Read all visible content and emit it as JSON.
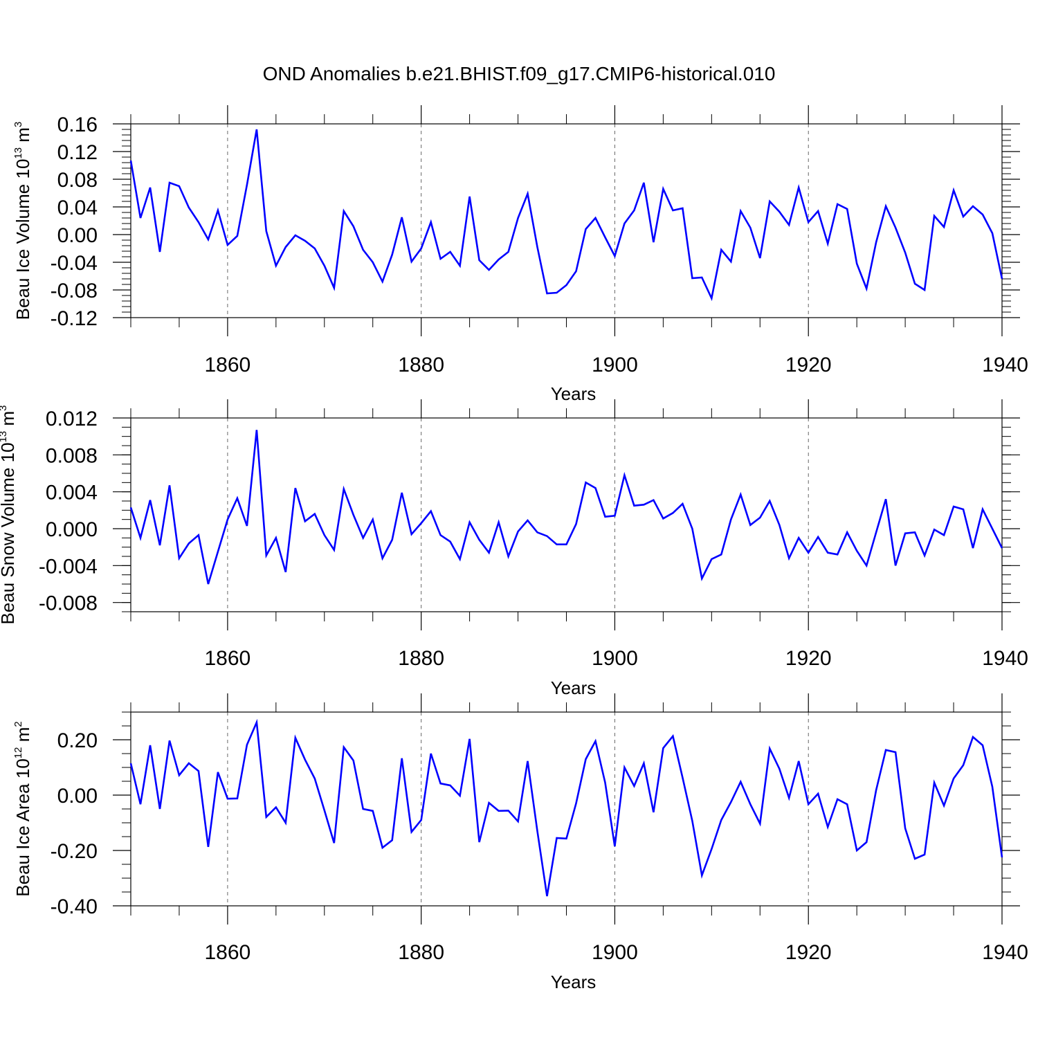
{
  "title": "OND Anomalies b.e21.BHIST.f09_g17.CMIP6-historical.010",
  "colors": {
    "series": "#0000ff",
    "axis": "#000000",
    "grid": "#666666"
  },
  "chart_data": [
    {
      "type": "line",
      "name": "ice-volume",
      "ylabel": {
        "main": "Beau Ice Volume 10",
        "sup": "13",
        "tail": " m",
        "sup2": "3"
      },
      "xlabel": "Years",
      "xlim": [
        1850,
        1940
      ],
      "ylim": [
        -0.12,
        0.16
      ],
      "yticks": [
        -0.12,
        -0.08,
        -0.04,
        0.0,
        0.04,
        0.08,
        0.12,
        0.16
      ],
      "ytick_labels": [
        "-0.12",
        "-0.08",
        "-0.04",
        "0.00",
        "0.04",
        "0.08",
        "0.12",
        "0.16"
      ],
      "yminor_step": 0.008,
      "xticks": [
        1860,
        1880,
        1900,
        1920,
        1940
      ],
      "xtick_labels": [
        "1860",
        "1880",
        "1900",
        "1920",
        "1940"
      ],
      "x": [
        1850,
        1851,
        1852,
        1853,
        1854,
        1855,
        1856,
        1857,
        1858,
        1859,
        1860,
        1861,
        1862,
        1863,
        1864,
        1865,
        1866,
        1867,
        1868,
        1869,
        1870,
        1871,
        1872,
        1873,
        1874,
        1875,
        1876,
        1877,
        1878,
        1879,
        1880,
        1881,
        1882,
        1883,
        1884,
        1885,
        1886,
        1887,
        1888,
        1889,
        1890,
        1891,
        1892,
        1893,
        1894,
        1895,
        1896,
        1897,
        1898,
        1899,
        1900,
        1901,
        1902,
        1903,
        1904,
        1905,
        1906,
        1907,
        1908,
        1909,
        1910,
        1911,
        1912,
        1913,
        1914,
        1915,
        1916,
        1917,
        1918,
        1919,
        1920,
        1921,
        1922,
        1923,
        1924,
        1925,
        1926,
        1927,
        1928,
        1929,
        1930,
        1931,
        1932,
        1933,
        1934,
        1935,
        1936,
        1937,
        1938,
        1939,
        1940
      ],
      "values": [
        0.107,
        0.024,
        0.068,
        -0.025,
        0.075,
        0.07,
        0.039,
        0.018,
        -0.007,
        0.035,
        -0.015,
        -0.002,
        0.072,
        0.152,
        0.005,
        -0.045,
        -0.018,
        -0.001,
        -0.009,
        -0.02,
        -0.045,
        -0.077,
        0.034,
        0.012,
        -0.022,
        -0.04,
        -0.068,
        -0.029,
        0.025,
        -0.039,
        -0.02,
        0.018,
        -0.035,
        -0.025,
        -0.045,
        0.055,
        -0.037,
        -0.051,
        -0.036,
        -0.025,
        0.024,
        0.059,
        -0.018,
        -0.085,
        -0.084,
        -0.073,
        -0.053,
        0.008,
        0.024,
        -0.004,
        -0.031,
        0.016,
        0.035,
        0.075,
        -0.011,
        0.066,
        0.035,
        0.038,
        -0.063,
        -0.062,
        -0.092,
        -0.022,
        -0.039,
        0.034,
        0.01,
        -0.034,
        0.048,
        0.033,
        0.014,
        0.068,
        0.018,
        0.034,
        -0.013,
        0.044,
        0.037,
        -0.042,
        -0.078,
        -0.011,
        0.041,
        0.01,
        -0.026,
        -0.071,
        -0.08,
        0.027,
        0.011,
        0.064,
        0.026,
        0.041,
        0.029,
        0.002,
        -0.064
      ]
    },
    {
      "type": "line",
      "name": "snow-volume",
      "ylabel": {
        "main": "Beau Snow Volume 10",
        "sup": "13",
        "tail": " m",
        "sup2": "3"
      },
      "xlabel": "Years",
      "xlim": [
        1850,
        1940
      ],
      "ylim": [
        -0.009,
        0.012
      ],
      "yticks": [
        -0.008,
        -0.004,
        0.0,
        0.004,
        0.008,
        0.012
      ],
      "ytick_labels": [
        "-0.008",
        "-0.004",
        "0.000",
        "0.004",
        "0.008",
        "0.012"
      ],
      "yminor_step": 0.001,
      "xticks": [
        1860,
        1880,
        1900,
        1920,
        1940
      ],
      "xtick_labels": [
        "1860",
        "1880",
        "1900",
        "1920",
        "1940"
      ],
      "x": [
        1850,
        1851,
        1852,
        1853,
        1854,
        1855,
        1856,
        1857,
        1858,
        1859,
        1860,
        1861,
        1862,
        1863,
        1864,
        1865,
        1866,
        1867,
        1868,
        1869,
        1870,
        1871,
        1872,
        1873,
        1874,
        1875,
        1876,
        1877,
        1878,
        1879,
        1880,
        1881,
        1882,
        1883,
        1884,
        1885,
        1886,
        1887,
        1888,
        1889,
        1890,
        1891,
        1892,
        1893,
        1894,
        1895,
        1896,
        1897,
        1898,
        1899,
        1900,
        1901,
        1902,
        1903,
        1904,
        1905,
        1906,
        1907,
        1908,
        1909,
        1910,
        1911,
        1912,
        1913,
        1914,
        1915,
        1916,
        1917,
        1918,
        1919,
        1920,
        1921,
        1922,
        1923,
        1924,
        1925,
        1926,
        1927,
        1928,
        1929,
        1930,
        1931,
        1932,
        1933,
        1934,
        1935,
        1936,
        1937,
        1938,
        1939,
        1940
      ],
      "values": [
        0.0023,
        -0.001,
        0.0031,
        -0.0018,
        0.0047,
        -0.0032,
        -0.0016,
        -0.0007,
        -0.006,
        -0.0025,
        0.001,
        0.0033,
        0.0003,
        0.0107,
        -0.0029,
        -0.001,
        -0.0047,
        0.0044,
        0.0008,
        0.0016,
        -0.0007,
        -0.0023,
        0.0043,
        0.0015,
        -0.001,
        0.001,
        -0.0032,
        -0.0012,
        0.0039,
        -0.0006,
        0.0006,
        0.0019,
        -0.0007,
        -0.0014,
        -0.0033,
        0.0007,
        -0.0012,
        -0.0026,
        0.0007,
        -0.003,
        -0.0003,
        0.0009,
        -0.0004,
        -0.0008,
        -0.0017,
        -0.0017,
        0.0005,
        0.005,
        0.0044,
        0.0013,
        0.0014,
        0.0058,
        0.0025,
        0.0026,
        0.0031,
        0.0011,
        0.0017,
        0.0027,
        0.0,
        -0.0054,
        -0.0033,
        -0.0028,
        0.001,
        0.0037,
        0.0004,
        0.0012,
        0.003,
        0.0004,
        -0.0032,
        -0.001,
        -0.0026,
        -0.0009,
        -0.0026,
        -0.0028,
        -0.0004,
        -0.0024,
        -0.004,
        -0.0004,
        0.0032,
        -0.004,
        -0.0005,
        -0.0004,
        -0.0029,
        -0.0001,
        -0.0007,
        0.0024,
        0.0021,
        -0.0021,
        0.0021,
        0.0,
        -0.0021
      ]
    },
    {
      "type": "line",
      "name": "ice-area",
      "ylabel": {
        "main": "Beau Ice Area 10",
        "sup": "12",
        "tail": " m",
        "sup2": "2"
      },
      "xlabel": "Years",
      "xlim": [
        1850,
        1940
      ],
      "ylim": [
        -0.4,
        0.3
      ],
      "yticks": [
        -0.4,
        -0.2,
        0.0,
        0.2
      ],
      "ytick_labels": [
        "-0.40",
        "-0.20",
        "0.00",
        "0.20"
      ],
      "yminor_step": 0.05,
      "xticks": [
        1860,
        1880,
        1900,
        1920,
        1940
      ],
      "xtick_labels": [
        "1860",
        "1880",
        "1900",
        "1920",
        "1940"
      ],
      "x": [
        1850,
        1851,
        1852,
        1853,
        1854,
        1855,
        1856,
        1857,
        1858,
        1859,
        1860,
        1861,
        1862,
        1863,
        1864,
        1865,
        1866,
        1867,
        1868,
        1869,
        1870,
        1871,
        1872,
        1873,
        1874,
        1875,
        1876,
        1877,
        1878,
        1879,
        1880,
        1881,
        1882,
        1883,
        1884,
        1885,
        1886,
        1887,
        1888,
        1889,
        1890,
        1891,
        1892,
        1893,
        1894,
        1895,
        1896,
        1897,
        1898,
        1899,
        1900,
        1901,
        1902,
        1903,
        1904,
        1905,
        1906,
        1907,
        1908,
        1909,
        1910,
        1911,
        1912,
        1913,
        1914,
        1915,
        1916,
        1917,
        1918,
        1919,
        1920,
        1921,
        1922,
        1923,
        1924,
        1925,
        1926,
        1927,
        1928,
        1929,
        1930,
        1931,
        1932,
        1933,
        1934,
        1935,
        1936,
        1937,
        1938,
        1939,
        1940
      ],
      "values": [
        0.115,
        -0.033,
        0.18,
        -0.05,
        0.197,
        0.072,
        0.115,
        0.087,
        -0.187,
        0.083,
        -0.013,
        -0.012,
        0.182,
        0.263,
        -0.079,
        -0.044,
        -0.1,
        0.207,
        0.128,
        0.06,
        -0.055,
        -0.173,
        0.173,
        0.125,
        -0.05,
        -0.057,
        -0.19,
        -0.163,
        0.133,
        -0.133,
        -0.09,
        0.15,
        0.042,
        0.035,
        -0.002,
        0.203,
        -0.17,
        -0.028,
        -0.057,
        -0.056,
        -0.095,
        0.123,
        -0.13,
        -0.365,
        -0.155,
        -0.157,
        -0.03,
        0.13,
        0.195,
        0.045,
        -0.185,
        0.1,
        0.033,
        0.115,
        -0.062,
        0.17,
        0.213,
        0.063,
        -0.093,
        -0.29,
        -0.195,
        -0.09,
        -0.025,
        0.048,
        -0.033,
        -0.103,
        0.168,
        0.095,
        -0.01,
        0.123,
        -0.033,
        0.005,
        -0.115,
        -0.015,
        -0.033,
        -0.2,
        -0.17,
        0.018,
        0.163,
        0.155,
        -0.12,
        -0.23,
        -0.215,
        0.045,
        -0.038,
        0.06,
        0.108,
        0.21,
        0.18,
        0.03,
        -0.225
      ]
    }
  ]
}
